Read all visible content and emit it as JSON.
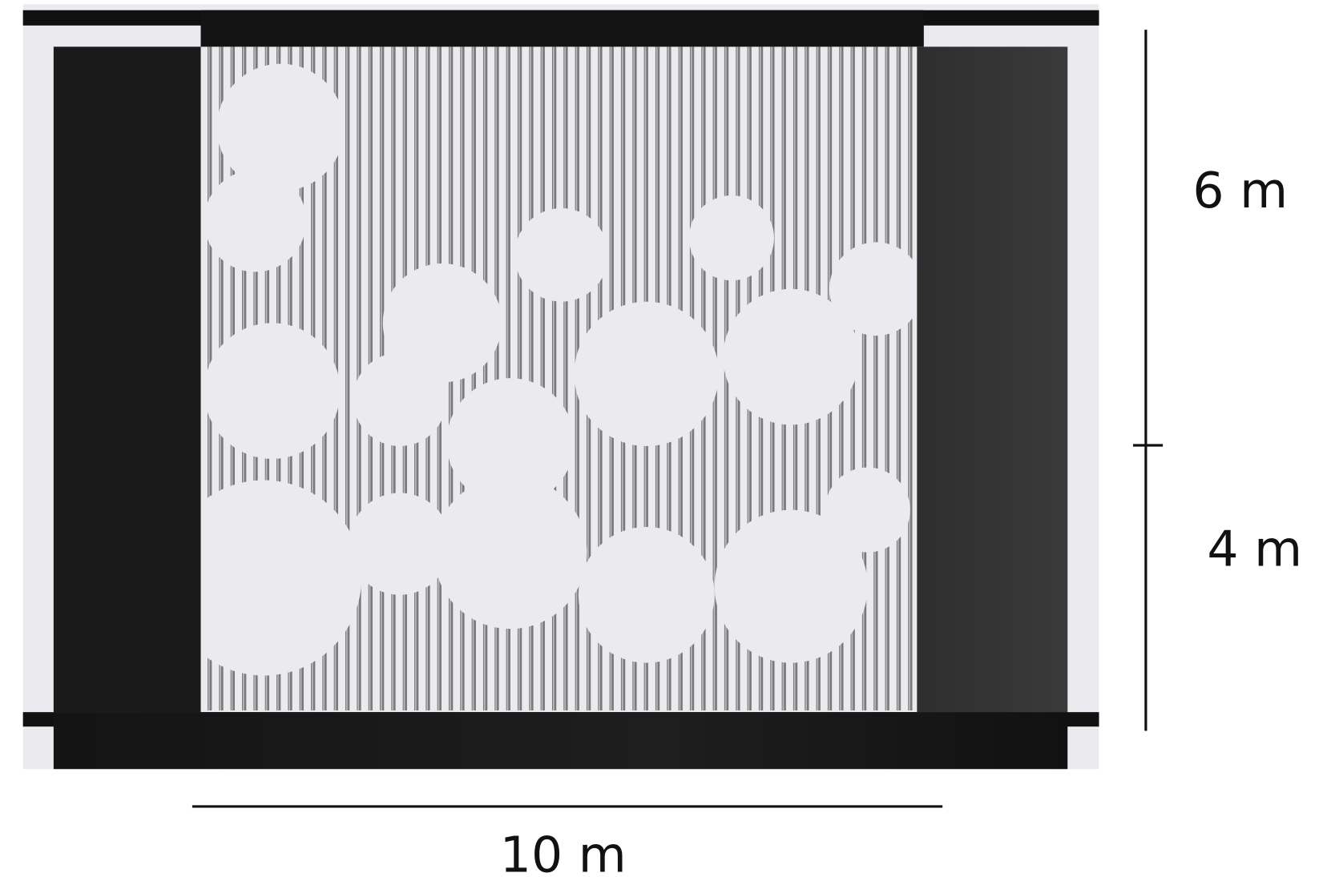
{
  "dimensions": {
    "upper_height": "6 m",
    "lower_height": "4 m",
    "width": "10 m"
  }
}
